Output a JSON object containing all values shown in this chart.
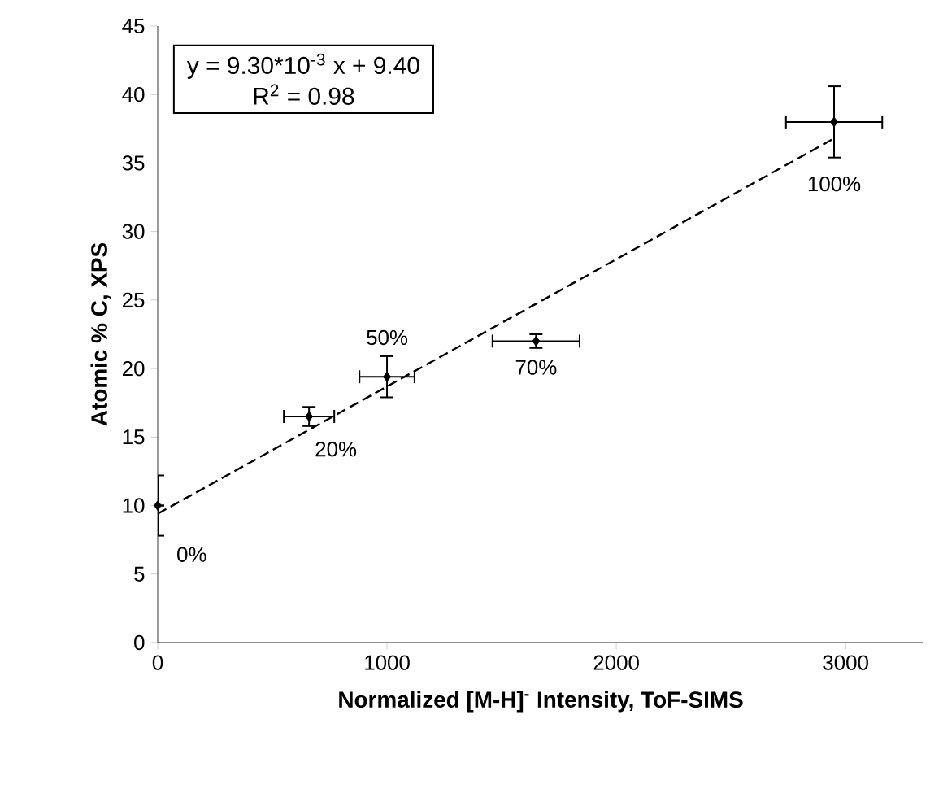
{
  "chart_data": {
    "type": "scatter",
    "xlabel": "Normalized [M-H]$^{-}$ Intensity, ToF-SIMS",
    "ylabel": "Atomic % C, XPS",
    "series": [
      {
        "type": "scatter",
        "color": "#000000",
        "marker": "diamond",
        "x": [
          0,
          660,
          1000,
          1650,
          2950
        ],
        "values": [
          10,
          16.5,
          19.4,
          22,
          38
        ],
        "errors": [
          2.2,
          0.7,
          1.5,
          0.5,
          2.6
        ],
        "xerrors": [
          null,
          110,
          120,
          190,
          210
        ]
      },
      {
        "type": "line",
        "color": "#000000",
        "line_style": "dashed",
        "marker": "none",
        "x": [
          0,
          2950
        ],
        "values": [
          9.4,
          36.8
        ]
      }
    ],
    "annotations": [
      "y = 9.30*10$^{-3}$ x + 9.40",
      "R$^{2}$ = 0.98",
      {
        "text": "0%",
        "x": 0,
        "y": 10
      },
      {
        "text": "20%",
        "x": 660,
        "y": 16.5
      },
      {
        "text": "50%",
        "x": 1000,
        "y": 19.4
      },
      {
        "text": "70%",
        "x": 1650,
        "y": 22
      },
      {
        "text": "100%",
        "x": 2950,
        "y": 38
      }
    ],
    "xlim": [
      0,
      3340
    ],
    "ylim": [
      0,
      45
    ],
    "xticks": [
      0,
      1000,
      2000,
      3000
    ],
    "yticks": [
      0,
      5,
      10,
      15,
      20,
      25,
      30,
      35,
      40,
      45
    ]
  }
}
